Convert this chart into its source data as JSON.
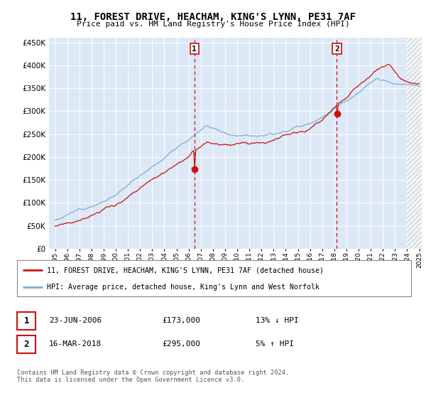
{
  "title": "11, FOREST DRIVE, HEACHAM, KING'S LYNN, PE31 7AF",
  "subtitle": "Price paid vs. HM Land Registry's House Price Index (HPI)",
  "bg_color": "#dce8f5",
  "hpi_color": "#7aadd4",
  "price_color": "#cc1111",
  "marker1_x": 2006.48,
  "marker1_price": 173000,
  "marker2_x": 2018.21,
  "marker2_price": 295000,
  "ylim_min": 0,
  "ylim_max": 460000,
  "xlim_min": 1994.5,
  "xlim_max": 2025.2,
  "hatch_start": 2024.0,
  "legend1": "11, FOREST DRIVE, HEACHAM, KING'S LYNN, PE31 7AF (detached house)",
  "legend2": "HPI: Average price, detached house, King's Lynn and West Norfolk",
  "table_row1_num": "1",
  "table_row1_date": "23-JUN-2006",
  "table_row1_price": "£173,000",
  "table_row1_hpi": "13% ↓ HPI",
  "table_row2_num": "2",
  "table_row2_date": "16-MAR-2018",
  "table_row2_price": "£295,000",
  "table_row2_hpi": "5% ↑ HPI",
  "footnote": "Contains HM Land Registry data © Crown copyright and database right 2024.\nThis data is licensed under the Open Government Licence v3.0."
}
